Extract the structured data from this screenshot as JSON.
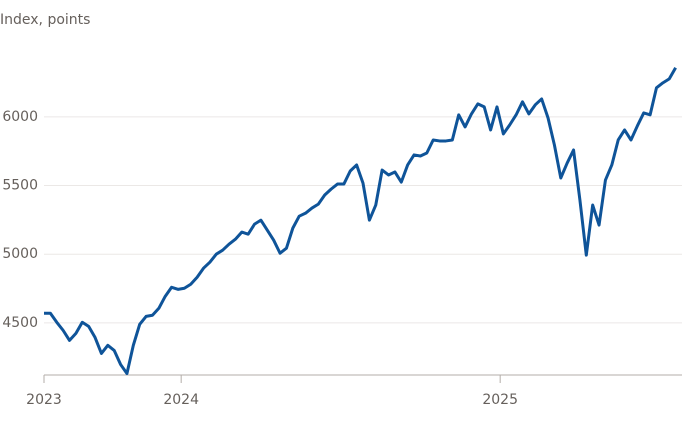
{
  "chart_data": {
    "type": "line",
    "subtitle": "Index, points",
    "x": [
      2023.57,
      2023.59,
      2023.61,
      2023.63,
      2023.65,
      2023.67,
      2023.69,
      2023.71,
      2023.73,
      2023.75,
      2023.77,
      2023.79,
      2023.81,
      2023.83,
      2023.85,
      2023.87,
      2023.89,
      2023.91,
      2023.93,
      2023.95,
      2023.97,
      2023.99,
      2024.01,
      2024.03,
      2024.05,
      2024.07,
      2024.09,
      2024.11,
      2024.13,
      2024.15,
      2024.17,
      2024.19,
      2024.21,
      2024.23,
      2024.25,
      2024.27,
      2024.29,
      2024.31,
      2024.33,
      2024.35,
      2024.37,
      2024.39,
      2024.41,
      2024.43,
      2024.45,
      2024.47,
      2024.49,
      2024.51,
      2024.53,
      2024.55,
      2024.57,
      2024.59,
      2024.61,
      2024.63,
      2024.65,
      2024.67,
      2024.69,
      2024.71,
      2024.73,
      2024.75,
      2024.77,
      2024.79,
      2024.81,
      2024.83,
      2024.85,
      2024.87,
      2024.89,
      2024.91,
      2024.93,
      2024.95,
      2024.97,
      2024.99,
      2025.01,
      2025.03,
      2025.05,
      2025.07,
      2025.09,
      2025.11,
      2025.13,
      2025.15,
      2025.17,
      2025.19,
      2025.21,
      2025.23,
      2025.25,
      2025.27,
      2025.29,
      2025.31,
      2025.33,
      2025.35,
      2025.37,
      2025.39,
      2025.41,
      2025.43,
      2025.45,
      2025.47,
      2025.49,
      2025.51,
      2025.53,
      2025.55
    ],
    "series": [
      {
        "color": "#0f5499",
        "values": [
          4570,
          4570,
          4504,
          4445,
          4372,
          4423,
          4504,
          4474,
          4394,
          4277,
          4336,
          4299,
          4197,
          4131,
          4336,
          4489,
          4547,
          4555,
          4606,
          4693,
          4759,
          4744,
          4752,
          4781,
          4832,
          4898,
          4942,
          5000,
          5029,
          5073,
          5109,
          5161,
          5146,
          5219,
          5248,
          5175,
          5102,
          5007,
          5044,
          5190,
          5277,
          5299,
          5336,
          5365,
          5431,
          5474,
          5511,
          5511,
          5606,
          5650,
          5518,
          5248,
          5358,
          5613,
          5577,
          5599,
          5525,
          5650,
          5723,
          5715,
          5737,
          5832,
          5825,
          5825,
          5832,
          6015,
          5927,
          6022,
          6095,
          6073,
          5905,
          6073,
          5876,
          5942,
          6015,
          6110,
          6022,
          6088,
          6131,
          5993,
          5796,
          5555,
          5664,
          5759,
          5394,
          4993,
          5358,
          5212,
          5540,
          5650,
          5832,
          5905,
          5832,
          5934,
          6029,
          6015,
          6212,
          6248,
          6277,
          6358
        ]
      }
    ],
    "xlim": [
      2023.57,
      2025.57
    ],
    "xticks": [
      {
        "value": 2023.57,
        "label": "2023"
      },
      2024,
      2025
    ],
    "ylim": [
      4120,
      6400
    ],
    "yticks": [
      4500,
      5000,
      5500,
      6000
    ],
    "grid": true
  }
}
